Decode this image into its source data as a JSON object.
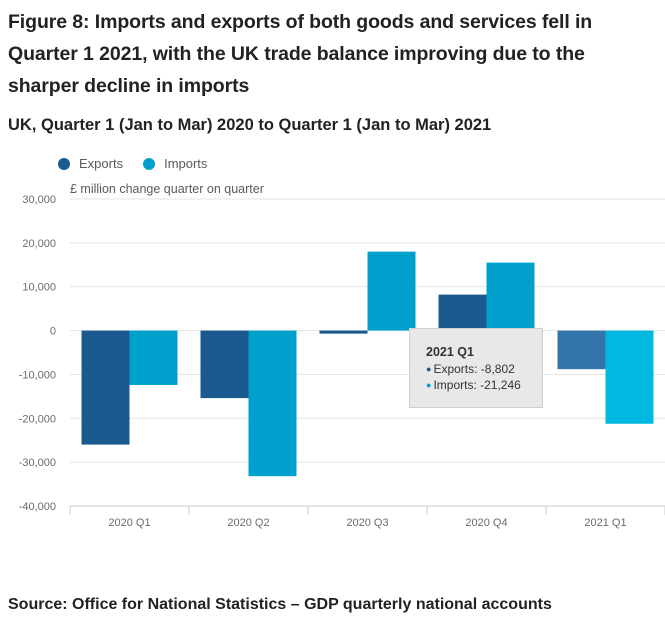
{
  "title": "Figure 8: Imports and exports of both goods and services fell in Quarter 1 2021, with the UK trade balance improving due to the sharper decline in imports",
  "subtitle": "UK, Quarter 1 (Jan to Mar) 2020 to Quarter 1 (Jan to Mar) 2021",
  "source": "Source: Office for National Statistics – GDP quarterly national accounts",
  "colors": {
    "exports": "#1a5a8f",
    "imports": "#00a0cc",
    "exports_hover": "#3375ab",
    "imports_hover": "#00b8e0"
  },
  "tooltip": {
    "title": "2021 Q1",
    "exports_line": "Exports: -8,802",
    "imports_line": "Imports: -21,246"
  },
  "chart_data": {
    "type": "bar",
    "title": "Figure 8: Imports and exports of both goods and services fell in Quarter 1 2021, with the UK trade balance improving due to the sharper decline in imports",
    "subtitle": "UK, Quarter 1 (Jan to Mar) 2020 to Quarter 1 (Jan to Mar) 2021",
    "xlabel": "",
    "ylabel": "£ million change quarter on quarter",
    "categories": [
      "2020 Q1",
      "2020 Q2",
      "2020 Q3",
      "2020 Q4",
      "2021 Q1"
    ],
    "series": [
      {
        "name": "Exports",
        "values": [
          -26000,
          -15400,
          -700,
          8200,
          -8802
        ]
      },
      {
        "name": "Imports",
        "values": [
          -12400,
          -33200,
          18000,
          15500,
          -21246
        ]
      }
    ],
    "ylim": [
      -40000,
      30000
    ],
    "yticks": [
      30000,
      20000,
      10000,
      0,
      -10000,
      -20000,
      -30000,
      -40000
    ],
    "ytick_labels": [
      "30,000",
      "20,000",
      "10,000",
      "0",
      "-10,000",
      "-20,000",
      "-30,000",
      "-40,000"
    ],
    "grid": true,
    "legend": "top-left",
    "highlighted_category": "2021 Q1"
  }
}
